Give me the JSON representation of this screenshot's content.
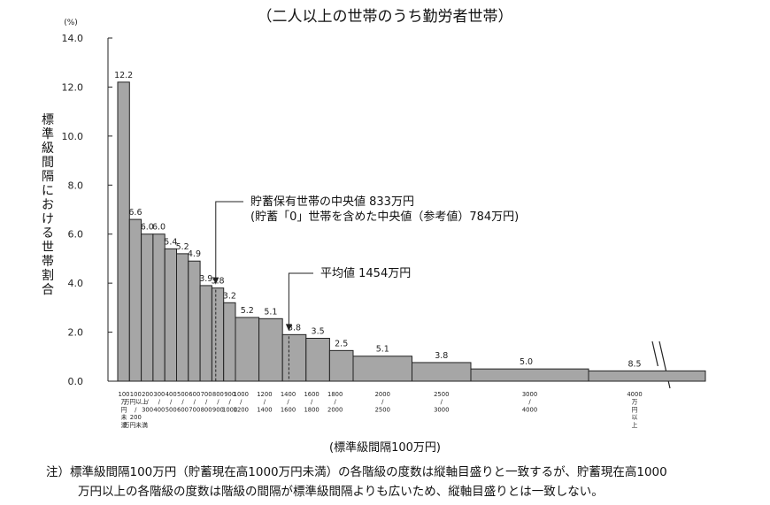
{
  "title": "（二人以上の世帯のうち勤労者世帯）",
  "note_line1": "注）標準級間隔100万円（貯蓄現在高1000万円未満）の各階級の度数は縦軸目盛りと一致するが、貯蓄現在高1000",
  "note_line2": "万円以上の各階級の度数は階級の間隔が標準級間隔よりも広いため、縦軸目盛りとは一致しない。",
  "chart_data": {
    "type": "bar",
    "title": "",
    "ylabel": "標準級間隔における世帯割合",
    "y_unit": "(%)",
    "xlabel": "(標準級間隔100万円)",
    "ylim": [
      0,
      14
    ],
    "yticks": [
      "0.0",
      "2.0",
      "4.0",
      "6.0",
      "8.0",
      "10.0",
      "12.0",
      "14.0"
    ],
    "grid": false,
    "bar_color": "#a6a6a6",
    "bins": [
      {
        "from": 0,
        "to": 100,
        "height": 12.2,
        "label": "12.2",
        "tick": [
          "100",
          "万",
          "円",
          "未",
          "満"
        ]
      },
      {
        "from": 100,
        "to": 200,
        "height": 6.6,
        "label": "6.6",
        "tick": [
          "100",
          "万円以上",
          "/",
          "200",
          "万円未満"
        ]
      },
      {
        "from": 200,
        "to": 300,
        "height": 6.0,
        "label": "6.0",
        "tick": [
          "200",
          "/",
          "300"
        ]
      },
      {
        "from": 300,
        "to": 400,
        "height": 6.0,
        "label": "6.0",
        "tick": [
          "300",
          "/",
          "400"
        ]
      },
      {
        "from": 400,
        "to": 500,
        "height": 5.4,
        "label": "5.4",
        "tick": [
          "400",
          "/",
          "500"
        ]
      },
      {
        "from": 500,
        "to": 600,
        "height": 5.2,
        "label": "5.2",
        "tick": [
          "500",
          "/",
          "600"
        ]
      },
      {
        "from": 600,
        "to": 700,
        "height": 4.9,
        "label": "4.9",
        "tick": [
          "600",
          "/",
          "700"
        ]
      },
      {
        "from": 700,
        "to": 800,
        "height": 3.9,
        "label": "3.9",
        "tick": [
          "700",
          "/",
          "800"
        ]
      },
      {
        "from": 800,
        "to": 900,
        "height": 3.8,
        "label": "3.8",
        "tick": [
          "800",
          "/",
          "900"
        ]
      },
      {
        "from": 900,
        "to": 1000,
        "height": 3.2,
        "label": "3.2",
        "tick": [
          "900",
          "/",
          "1000"
        ]
      },
      {
        "from": 1000,
        "to": 1200,
        "height": 2.6,
        "label": "5.2",
        "tick": [
          "1000",
          "/",
          "1200"
        ]
      },
      {
        "from": 1200,
        "to": 1400,
        "height": 2.55,
        "label": "5.1",
        "tick": [
          "1200",
          "/",
          "1400"
        ]
      },
      {
        "from": 1400,
        "to": 1600,
        "height": 1.9,
        "label": "3.8",
        "tick": [
          "1400",
          "/",
          "1600"
        ]
      },
      {
        "from": 1600,
        "to": 1800,
        "height": 1.75,
        "label": "3.5",
        "tick": [
          "1600",
          "/",
          "1800"
        ]
      },
      {
        "from": 1800,
        "to": 2000,
        "height": 1.25,
        "label": "2.5",
        "tick": [
          "1800",
          "/",
          "2000"
        ]
      },
      {
        "from": 2000,
        "to": 2500,
        "height": 1.02,
        "label": "5.1",
        "tick": [
          "2000",
          "/",
          "2500"
        ]
      },
      {
        "from": 2500,
        "to": 3000,
        "height": 0.76,
        "label": "3.8",
        "tick": [
          "2500",
          "/",
          "3000"
        ]
      },
      {
        "from": 3000,
        "to": 4000,
        "height": 0.5,
        "label": "5.0",
        "tick": [
          "3000",
          "/",
          "4000"
        ]
      },
      {
        "from": 4000,
        "to": null,
        "height": 0.42,
        "label": "8.5",
        "tick": [
          "4000",
          "万",
          "円",
          "以",
          "上"
        ]
      }
    ],
    "annotations": [
      {
        "value": 833,
        "arrow_to_y": 4.5,
        "lines": [
          "貯蓄保有世帯の中央値 833万円",
          "(貯蓄「0」世帯を含めた中央値（参考値）784万円)"
        ]
      },
      {
        "value": 1454,
        "arrow_to_y": 2.7,
        "lines": [
          "平均値 1454万円"
        ]
      }
    ]
  }
}
